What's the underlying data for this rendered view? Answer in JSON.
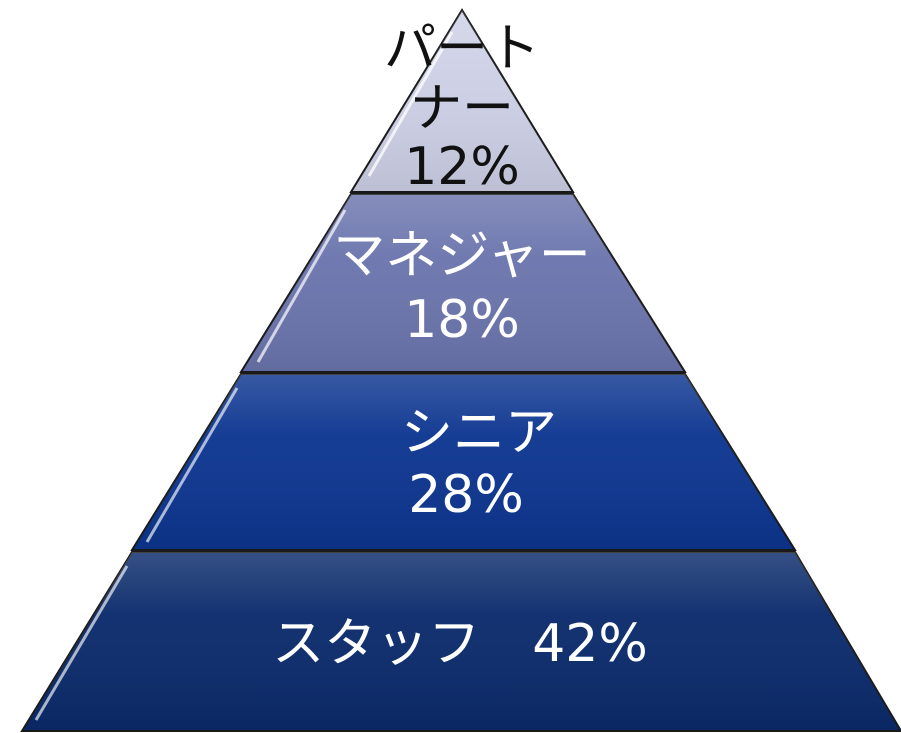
{
  "diagram": {
    "type": "pyramid",
    "tiers": [
      {
        "id": "partner",
        "label_lines": [
          "パート",
          "ナー",
          "12%"
        ],
        "name": "パートナー",
        "percent": 12,
        "fill": "#cdd0e6",
        "text_color": "#111111"
      },
      {
        "id": "manager",
        "label_lines": [
          "マネジャー",
          "18%"
        ],
        "name": "マネジャー",
        "percent": 18,
        "fill": "#6b75ad",
        "text_color": "#ffffff"
      },
      {
        "id": "senior",
        "label_lines": [
          "シニア",
          "28%"
        ],
        "name": "シニア",
        "percent": 28,
        "fill": "#0c3590",
        "text_color": "#ffffff"
      },
      {
        "id": "staff",
        "label_lines": [
          "スタッフ　42%"
        ],
        "name": "スタッフ",
        "percent": 42,
        "fill": "#0a2a6b",
        "text_color": "#ffffff"
      }
    ]
  }
}
